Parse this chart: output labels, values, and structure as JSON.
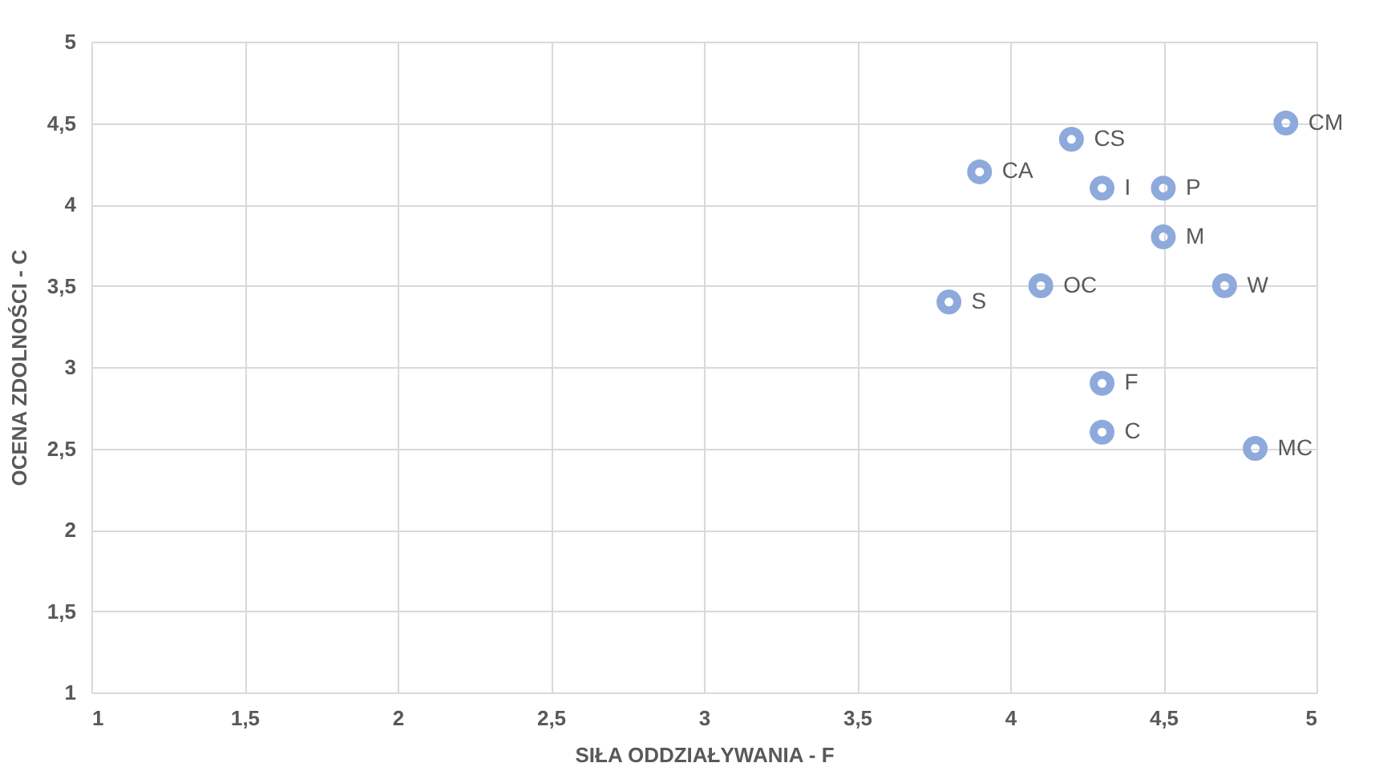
{
  "chart_data": {
    "type": "scatter",
    "xlabel": "SIŁA ODDZIAŁYWANIA - F",
    "ylabel": "OCENA ZDOLNOŚCI - C",
    "x": [
      4.2,
      3.9,
      4.3,
      4.5,
      4.9,
      4.5,
      4.1,
      4.7,
      3.8,
      4.3,
      4.3,
      4.8
    ],
    "values": [
      4.4,
      4.2,
      4.1,
      4.1,
      4.5,
      3.8,
      3.5,
      3.5,
      3.4,
      2.9,
      2.6,
      2.5
    ],
    "color": "#8eaadc",
    "marker": "circle",
    "grid": true,
    "xlim": [
      1,
      5
    ],
    "ylim": [
      1,
      5
    ],
    "xticks": [
      1,
      {
        "value": 1.5,
        "label": "1,5"
      },
      2,
      {
        "value": 2.5,
        "label": "2,5"
      },
      3,
      {
        "value": 3.5,
        "label": "3,5"
      },
      4,
      {
        "value": 4.5,
        "label": "4,5"
      },
      5
    ],
    "yticks": [
      1,
      {
        "value": 1.5,
        "label": "1,5"
      },
      2,
      {
        "value": 2.5,
        "label": "2,5"
      },
      3,
      {
        "value": 3.5,
        "label": "3,5"
      },
      4,
      {
        "value": 4.5,
        "label": "4,5"
      },
      5
    ],
    "annotations": [
      {
        "text": "CS",
        "x": 4.2,
        "y": 4.4
      },
      {
        "text": "CA",
        "x": 3.9,
        "y": 4.2
      },
      {
        "text": "I",
        "x": 4.3,
        "y": 4.1
      },
      {
        "text": "P",
        "x": 4.5,
        "y": 4.1
      },
      {
        "text": "CM",
        "x": 4.9,
        "y": 4.5
      },
      {
        "text": "M",
        "x": 4.5,
        "y": 3.8
      },
      {
        "text": "OC",
        "x": 4.1,
        "y": 3.5
      },
      {
        "text": "W",
        "x": 4.7,
        "y": 3.5
      },
      {
        "text": "S",
        "x": 3.8,
        "y": 3.4
      },
      {
        "text": "F",
        "x": 4.3,
        "y": 2.9
      },
      {
        "text": "C",
        "x": 4.3,
        "y": 2.6
      },
      {
        "text": "MC",
        "x": 4.8,
        "y": 2.5
      }
    ]
  }
}
